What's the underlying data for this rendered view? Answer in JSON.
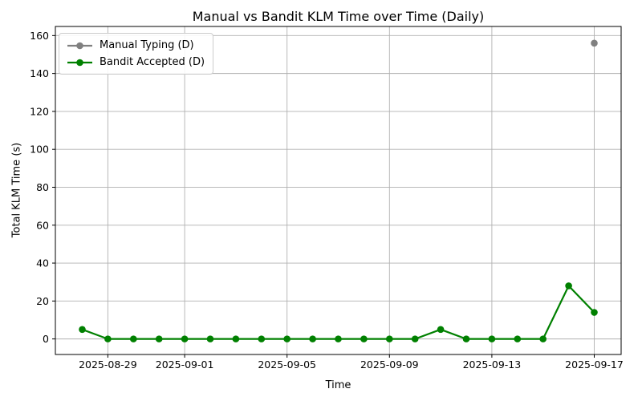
{
  "chart_data": {
    "type": "line",
    "title": "Manual vs Bandit KLM Time over Time (Daily)",
    "xlabel": "Time",
    "ylabel": "Total KLM Time (s)",
    "grid": true,
    "legend_position": "upper-left",
    "background_color": "#ffffff",
    "grid_color": "#b0b0b0",
    "spine_color": "#000000",
    "y_ticks": [
      0,
      20,
      40,
      60,
      80,
      100,
      120,
      140,
      160
    ],
    "ylim": [
      -8.2,
      164.8
    ],
    "x_epoch_date": "2025-08-28",
    "xlim_days": [
      -1.05,
      21.05
    ],
    "x_tick_labels": [
      "2025-08-29",
      "2025-09-01",
      "2025-09-05",
      "2025-09-09",
      "2025-09-13",
      "2025-09-17"
    ],
    "x_tick_days": [
      1,
      4,
      8,
      12,
      16,
      20
    ],
    "series": [
      {
        "name": "Manual Typing (D)",
        "color": "#808080",
        "marker": "circle",
        "dates": [
          "2025-09-17"
        ],
        "days": [
          20
        ],
        "values": [
          156
        ]
      },
      {
        "name": "Bandit Accepted (D)",
        "color": "#008000",
        "marker": "circle",
        "dates": [
          "2025-08-28",
          "2025-08-29",
          "2025-08-30",
          "2025-08-31",
          "2025-09-01",
          "2025-09-02",
          "2025-09-03",
          "2025-09-04",
          "2025-09-05",
          "2025-09-06",
          "2025-09-07",
          "2025-09-08",
          "2025-09-09",
          "2025-09-10",
          "2025-09-11",
          "2025-09-12",
          "2025-09-13",
          "2025-09-14",
          "2025-09-15",
          "2025-09-16",
          "2025-09-17"
        ],
        "days": [
          0,
          1,
          2,
          3,
          4,
          5,
          6,
          7,
          8,
          9,
          10,
          11,
          12,
          13,
          14,
          15,
          16,
          17,
          18,
          19,
          20
        ],
        "values": [
          5,
          0,
          0,
          0,
          0,
          0,
          0,
          0,
          0,
          0,
          0,
          0,
          0,
          0,
          5,
          0,
          0,
          0,
          0,
          28,
          14
        ]
      }
    ]
  }
}
